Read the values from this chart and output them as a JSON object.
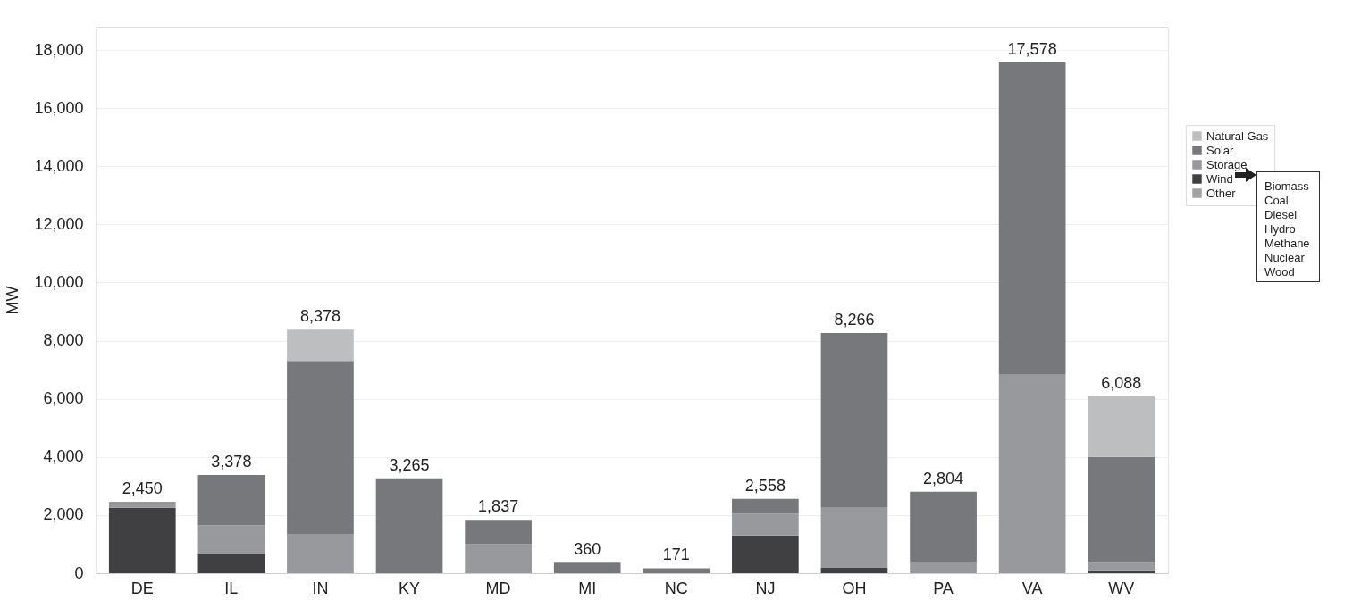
{
  "chart_data": {
    "type": "bar",
    "stacked": true,
    "ylabel": "MW",
    "categories": [
      "DE",
      "IL",
      "IN",
      "KY",
      "MD",
      "MI",
      "NC",
      "NJ",
      "OH",
      "PA",
      "VA",
      "WV"
    ],
    "series": [
      {
        "name": "Other",
        "color": "#a2a2a4",
        "values": [
          0,
          0,
          0,
          0,
          0,
          0,
          0,
          0,
          0,
          0,
          0,
          0
        ]
      },
      {
        "name": "Wind",
        "color": "#404042",
        "values": [
          2250,
          650,
          0,
          0,
          0,
          0,
          0,
          1300,
          200,
          0,
          0,
          100
        ]
      },
      {
        "name": "Storage",
        "color": "#98999c",
        "values": [
          150,
          1000,
          1350,
          0,
          1000,
          0,
          0,
          750,
          2050,
          400,
          6850,
          250
        ]
      },
      {
        "name": "Solar",
        "color": "#77787c",
        "values": [
          50,
          1728,
          5950,
          3265,
          837,
          360,
          171,
          508,
          6016,
          2404,
          10728,
          3650
        ]
      },
      {
        "name": "Natural Gas",
        "color": "#bdbec0",
        "values": [
          0,
          0,
          1078,
          0,
          0,
          0,
          0,
          0,
          0,
          0,
          0,
          2088
        ]
      }
    ],
    "totals": [
      "2,450",
      "3,378",
      "8,378",
      "3,265",
      "1,837",
      "360",
      "171",
      "2,558",
      "8,266",
      "2,804",
      "17,578",
      "6,088"
    ],
    "ylim": [
      0,
      18800
    ],
    "yticks": [
      0,
      {
        "value": 2000,
        "label": "2,000"
      },
      {
        "value": 4000,
        "label": "4,000"
      },
      {
        "value": 6000,
        "label": "6,000"
      },
      {
        "value": 8000,
        "label": "8,000"
      },
      {
        "value": 10000,
        "label": "10,000"
      },
      {
        "value": 12000,
        "label": "12,000"
      },
      {
        "value": 14000,
        "label": "14,000"
      },
      {
        "value": 16000,
        "label": "16,000"
      },
      {
        "value": 18000,
        "label": "18,000"
      }
    ],
    "grid": "y",
    "legend": "right",
    "annotations": [
      "Biomass\nCoal\nDiesel\nHydro\nMethane\nNuclear\nWood"
    ]
  }
}
